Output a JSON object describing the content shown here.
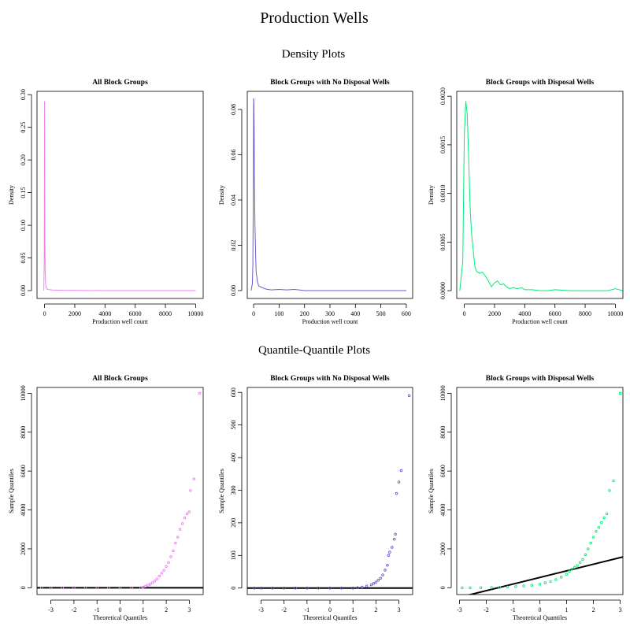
{
  "figure": {
    "title": "Production Wells",
    "section_titles": [
      "Density Plots",
      "Quantile-Quantile Plots"
    ]
  },
  "colors": {
    "all": "#ee82ee",
    "no_disposal": "#6a5acd",
    "disposal": "#00ee76",
    "reference_line": "#000000",
    "frame": "#000000"
  },
  "chart_data": [
    {
      "type": "line",
      "title": "All Block Groups",
      "xlabel": "Production well count",
      "ylabel": "Density",
      "xlim": [
        -500,
        10500
      ],
      "ylim": [
        -0.012,
        0.305
      ],
      "xticks": [
        0,
        2000,
        4000,
        6000,
        8000,
        10000
      ],
      "yticks": [
        0.0,
        0.05,
        0.1,
        0.15,
        0.2,
        0.25,
        0.3
      ],
      "ytick_labels": [
        "0.00",
        "0.05",
        "0.10",
        "0.15",
        "0.20",
        "0.25",
        "0.30"
      ],
      "series": [
        {
          "x": [
            -50,
            -20,
            0,
            10,
            20,
            40,
            70,
            100,
            150,
            200,
            300,
            500,
            800,
            1200,
            1600,
            2000,
            2500,
            3000,
            3500,
            4000,
            5000,
            6000,
            8000,
            10000
          ],
          "y": [
            0.0,
            0.05,
            0.29,
            0.22,
            0.09,
            0.03,
            0.01,
            0.005,
            0.003,
            0.002,
            0.0015,
            0.001,
            0.0008,
            0.0005,
            0.0004,
            0.0003,
            0.0002,
            0.0001,
            0.0002,
            0.0001,
            0.0,
            0.0,
            0.0,
            0.0
          ]
        }
      ]
    },
    {
      "type": "line",
      "title": "Block Groups with No Disposal Wells",
      "xlabel": "Production well count",
      "ylabel": "Density",
      "xlim": [
        -25,
        625
      ],
      "ylim": [
        -0.0035,
        0.088
      ],
      "xticks": [
        0,
        100,
        200,
        300,
        400,
        500,
        600
      ],
      "yticks": [
        0.0,
        0.02,
        0.04,
        0.06,
        0.08
      ],
      "ytick_labels": [
        "0.00",
        "0.02",
        "0.04",
        "0.06",
        "0.08"
      ],
      "series": [
        {
          "x": [
            -10,
            -5,
            -3,
            -1,
            0,
            1,
            2,
            3,
            5,
            8,
            10,
            15,
            20,
            30,
            40,
            50,
            70,
            100,
            130,
            160,
            200,
            300,
            400,
            600
          ],
          "y": [
            0.0,
            0.003,
            0.012,
            0.05,
            0.085,
            0.082,
            0.07,
            0.05,
            0.03,
            0.015,
            0.008,
            0.004,
            0.002,
            0.0015,
            0.001,
            0.0006,
            0.0003,
            0.0005,
            0.0003,
            0.0005,
            0.0,
            0.0,
            0.0,
            0.0
          ]
        }
      ]
    },
    {
      "type": "line",
      "title": "Block Groups with Disposal Wells",
      "xlabel": "Production well count",
      "ylabel": "Density",
      "xlim": [
        -500,
        10500
      ],
      "ylim": [
        -8e-05,
        0.00205
      ],
      "xticks": [
        0,
        2000,
        4000,
        6000,
        8000,
        10000
      ],
      "yticks": [
        0.0,
        0.0005,
        0.001,
        0.0015,
        0.002
      ],
      "ytick_labels": [
        "0.0000",
        "0.0005",
        "0.0010",
        "0.0015",
        "0.0020"
      ],
      "series": [
        {
          "x": [
            -300,
            -100,
            0,
            100,
            200,
            300,
            400,
            500,
            600,
            700,
            800,
            1000,
            1200,
            1400,
            1600,
            1800,
            2000,
            2200,
            2400,
            2600,
            2800,
            3000,
            3200,
            3500,
            3800,
            4000,
            4500,
            5000,
            5500,
            6000,
            7000,
            8000,
            9500,
            10000,
            10500
          ],
          "y": [
            0.0,
            0.0003,
            0.0016,
            0.00195,
            0.0018,
            0.0013,
            0.0008,
            0.00055,
            0.0004,
            0.00025,
            0.0002,
            0.00018,
            0.00019,
            0.00015,
            0.0001,
            4e-05,
            8e-05,
            0.0001,
            6e-05,
            7e-05,
            4e-05,
            2e-05,
            3e-05,
            2e-05,
            3e-05,
            1e-05,
            1e-05,
            0.0,
            0.0,
            1e-05,
            0.0,
            0.0,
            0.0,
            2e-05,
            0.0
          ]
        }
      ]
    },
    {
      "type": "scatter",
      "title": "All Block Groups",
      "xlabel": "Theoretical Quantiles",
      "ylabel": "Sample Quantiles",
      "xlim": [
        -3.6,
        3.6
      ],
      "ylim": [
        -350,
        10300
      ],
      "xticks": [
        -3,
        -2,
        -1,
        0,
        1,
        2,
        3
      ],
      "yticks": [
        0,
        2000,
        4000,
        6000,
        8000,
        10000
      ],
      "ytick_labels": [
        "0",
        "2000",
        "4000",
        "6000",
        "8000",
        "10000"
      ],
      "series": [
        {
          "points": [
            [
              -3.4,
              0
            ],
            [
              -3.0,
              0
            ],
            [
              -2.5,
              0
            ],
            [
              -2.0,
              0
            ],
            [
              -1.5,
              0
            ],
            [
              -1.0,
              0
            ],
            [
              -0.5,
              0
            ],
            [
              0.0,
              0
            ],
            [
              0.5,
              0
            ],
            [
              0.9,
              0
            ],
            [
              1.0,
              30
            ],
            [
              1.1,
              80
            ],
            [
              1.2,
              130
            ],
            [
              1.3,
              180
            ],
            [
              1.4,
              250
            ],
            [
              1.5,
              350
            ],
            [
              1.6,
              450
            ],
            [
              1.7,
              600
            ],
            [
              1.8,
              750
            ],
            [
              1.9,
              900
            ],
            [
              2.0,
              1100
            ],
            [
              2.1,
              1300
            ],
            [
              2.2,
              1600
            ],
            [
              2.3,
              1900
            ],
            [
              2.4,
              2300
            ],
            [
              2.5,
              2600
            ],
            [
              2.6,
              3000
            ],
            [
              2.7,
              3300
            ],
            [
              2.8,
              3600
            ],
            [
              2.9,
              3800
            ],
            [
              3.0,
              3900
            ],
            [
              3.05,
              5000
            ],
            [
              3.2,
              5600
            ],
            [
              3.45,
              10000
            ]
          ],
          "reference_line": {
            "intercept": 0,
            "slope": 0
          }
        }
      ]
    },
    {
      "type": "scatter",
      "title": "Block Groups with No Disposal Wells",
      "xlabel": "Theoretical Quantiles",
      "ylabel": "Sample Quantiles",
      "xlim": [
        -3.6,
        3.6
      ],
      "ylim": [
        -20,
        615
      ],
      "xticks": [
        -3,
        -2,
        -1,
        0,
        1,
        2,
        3
      ],
      "yticks": [
        0,
        100,
        200,
        300,
        400,
        500,
        600
      ],
      "ytick_labels": [
        "0",
        "100",
        "200",
        "300",
        "400",
        "500",
        "600"
      ],
      "series": [
        {
          "points": [
            [
              -3.3,
              0
            ],
            [
              -3.0,
              0
            ],
            [
              -2.5,
              0
            ],
            [
              -2.0,
              0
            ],
            [
              -1.5,
              0
            ],
            [
              -1.0,
              0
            ],
            [
              -0.5,
              0
            ],
            [
              0.0,
              0
            ],
            [
              0.5,
              0
            ],
            [
              1.0,
              0
            ],
            [
              1.2,
              1
            ],
            [
              1.4,
              3
            ],
            [
              1.6,
              6
            ],
            [
              1.8,
              10
            ],
            [
              1.9,
              14
            ],
            [
              2.0,
              18
            ],
            [
              2.1,
              24
            ],
            [
              2.2,
              30
            ],
            [
              2.3,
              40
            ],
            [
              2.4,
              55
            ],
            [
              2.5,
              70
            ],
            [
              2.55,
              100
            ],
            [
              2.6,
              110
            ],
            [
              2.7,
              125
            ],
            [
              2.8,
              150
            ],
            [
              2.85,
              165
            ],
            [
              2.9,
              290
            ],
            [
              3.0,
              325
            ],
            [
              3.1,
              360
            ],
            [
              3.45,
              590
            ]
          ],
          "reference_line": {
            "intercept": 0,
            "slope": 0
          }
        }
      ]
    },
    {
      "type": "scatter",
      "title": "Block Groups with Disposal Wells",
      "xlabel": "Theoretical Quantiles",
      "ylabel": "Sample Quantiles",
      "xlim": [
        -3.1,
        3.1
      ],
      "ylim": [
        -350,
        10300
      ],
      "xticks": [
        -3,
        -2,
        -1,
        0,
        1,
        2,
        3
      ],
      "yticks": [
        0,
        2000,
        4000,
        6000,
        8000,
        10000
      ],
      "ytick_labels": [
        "0",
        "2000",
        "4000",
        "6000",
        "8000",
        "10000"
      ],
      "series": [
        {
          "points": [
            [
              -2.9,
              0
            ],
            [
              -2.6,
              0
            ],
            [
              -2.2,
              5
            ],
            [
              -1.8,
              10
            ],
            [
              -1.5,
              20
            ],
            [
              -1.2,
              40
            ],
            [
              -0.9,
              60
            ],
            [
              -0.6,
              90
            ],
            [
              -0.3,
              130
            ],
            [
              0.0,
              180
            ],
            [
              0.2,
              250
            ],
            [
              0.4,
              320
            ],
            [
              0.6,
              420
            ],
            [
              0.8,
              550
            ],
            [
              1.0,
              700
            ],
            [
              1.1,
              850
            ],
            [
              1.2,
              950
            ],
            [
              1.3,
              1050
            ],
            [
              1.4,
              1150
            ],
            [
              1.5,
              1300
            ],
            [
              1.6,
              1450
            ],
            [
              1.7,
              1700
            ],
            [
              1.8,
              2000
            ],
            [
              1.9,
              2300
            ],
            [
              2.0,
              2600
            ],
            [
              2.1,
              2900
            ],
            [
              2.2,
              3100
            ],
            [
              2.3,
              3350
            ],
            [
              2.4,
              3600
            ],
            [
              2.5,
              3800
            ],
            [
              2.6,
              5000
            ],
            [
              2.75,
              5500
            ],
            [
              3.0,
              10000
            ]
          ],
          "reference_line": {
            "intercept": 530,
            "slope": 340
          }
        }
      ]
    }
  ]
}
